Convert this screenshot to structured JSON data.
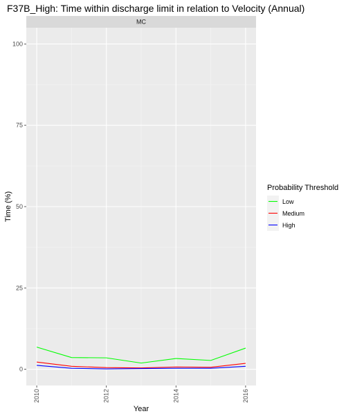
{
  "chart_data": {
    "type": "line",
    "title": "F37B_High: Time within discharge limit in relation to Velocity (Annual)",
    "facet_label": "MC",
    "xlabel": "Year",
    "ylabel": "Time (%)",
    "x": [
      2010,
      2011,
      2012,
      2013,
      2014,
      2015,
      2016
    ],
    "xlim": [
      2010,
      2016
    ],
    "ylim": [
      0,
      100
    ],
    "xticks": [
      2010,
      2012,
      2014,
      2016
    ],
    "yticks": [
      0,
      25,
      50,
      75,
      100
    ],
    "grid": true,
    "legend": {
      "title": "Probability Threshold",
      "position": "right"
    },
    "series": [
      {
        "name": "Low",
        "color": "#00ff00",
        "values": [
          6.8,
          3.6,
          3.5,
          1.9,
          3.3,
          2.7,
          6.5
        ]
      },
      {
        "name": "Medium",
        "color": "#ff0000",
        "values": [
          2.2,
          0.9,
          0.5,
          0.4,
          0.7,
          0.6,
          1.8
        ]
      },
      {
        "name": "High",
        "color": "#0000ff",
        "values": [
          1.2,
          0.3,
          0.1,
          0.2,
          0.3,
          0.3,
          0.9
        ]
      }
    ]
  }
}
